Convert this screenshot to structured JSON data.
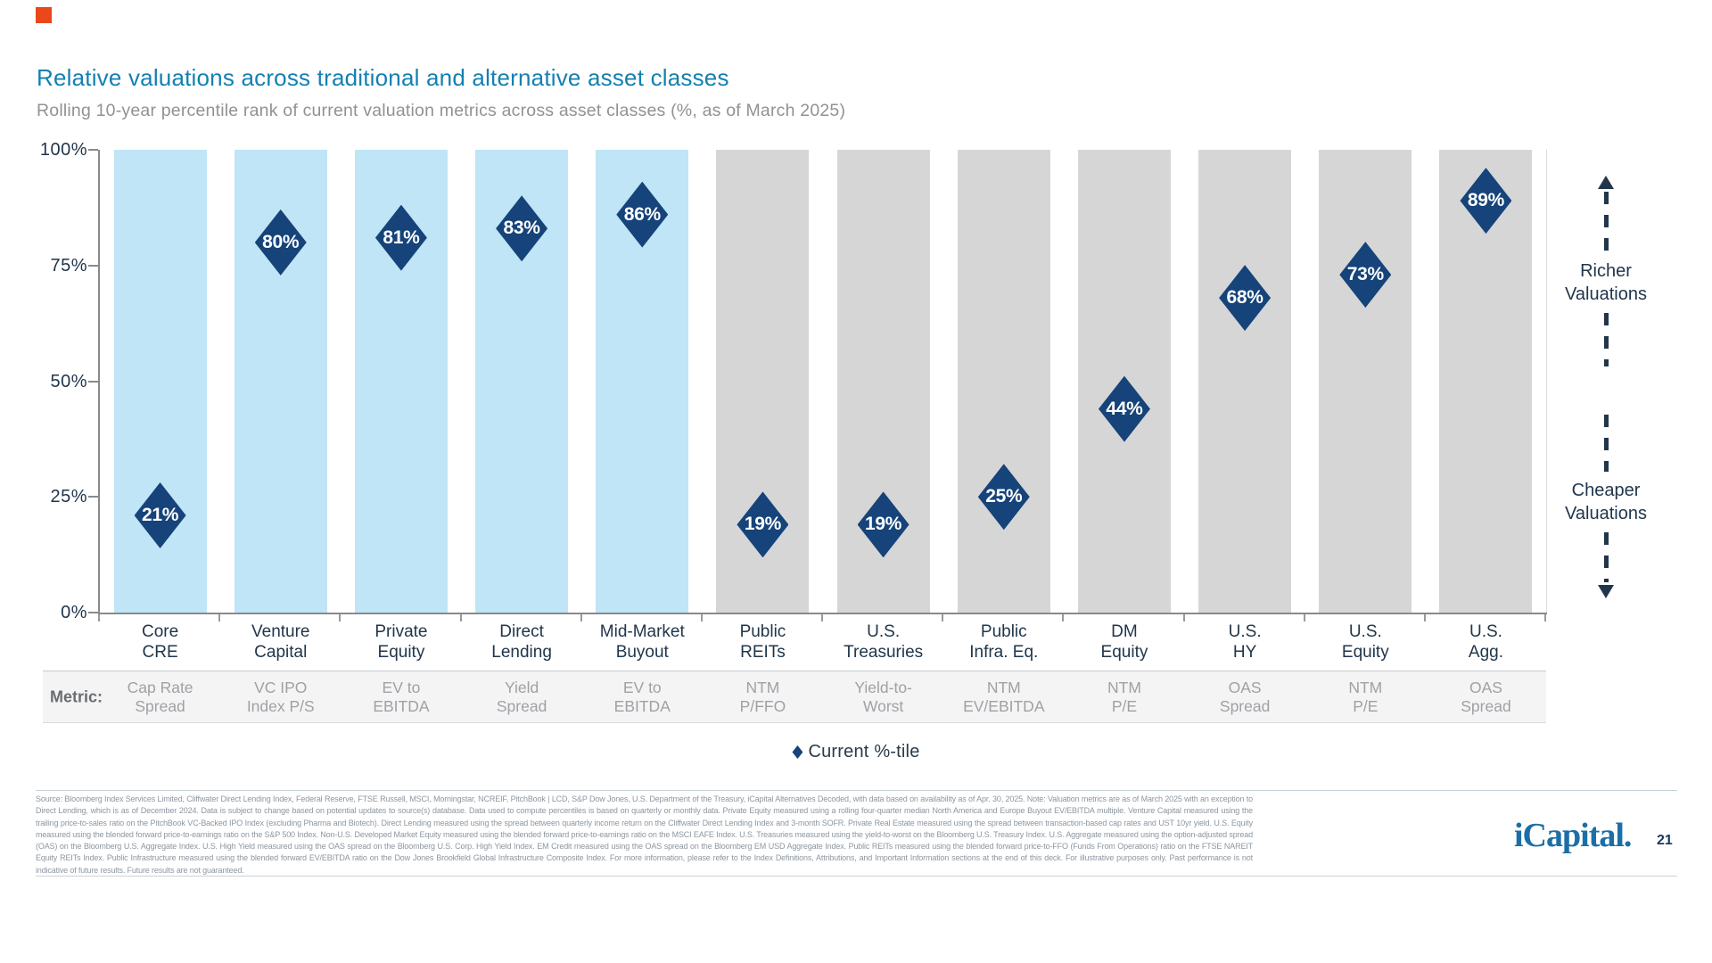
{
  "accent_color": "#E8481B",
  "chart_data": {
    "type": "scatter",
    "marker": "diamond",
    "title": "Relative valuations across traditional and alternative asset classes",
    "subtitle": "Rolling 10-year percentile rank of current valuation metrics across asset classes (%, as of March 2025)",
    "ylabel": "",
    "ylim": [
      0,
      100
    ],
    "y_tick_labels": [
      "100%",
      "75%",
      "50%",
      "25%",
      "0%"
    ],
    "grid": false,
    "legend": {
      "label": "Current %-tile",
      "position": "bottom-center"
    },
    "metric_row_label": "Metric:",
    "columns": [
      {
        "category": [
          "Core",
          "CRE"
        ],
        "metric": [
          "Cap Rate",
          "Spread"
        ],
        "value": 21,
        "group": "alternative"
      },
      {
        "category": [
          "Venture",
          "Capital"
        ],
        "metric": [
          "VC IPO",
          "Index P/S"
        ],
        "value": 80,
        "group": "alternative"
      },
      {
        "category": [
          "Private",
          "Equity"
        ],
        "metric": [
          "EV to",
          "EBITDA"
        ],
        "value": 81,
        "group": "alternative"
      },
      {
        "category": [
          "Direct",
          "Lending"
        ],
        "metric": [
          "Yield",
          "Spread"
        ],
        "value": 83,
        "group": "alternative"
      },
      {
        "category": [
          "Mid-Market",
          "Buyout"
        ],
        "metric": [
          "EV to",
          "EBITDA"
        ],
        "value": 86,
        "group": "alternative"
      },
      {
        "category": [
          "Public",
          "REITs"
        ],
        "metric": [
          "NTM",
          "P/FFO"
        ],
        "value": 19,
        "group": "traditional"
      },
      {
        "category": [
          "U.S.",
          "Treasuries"
        ],
        "metric": [
          "Yield-to-",
          "Worst"
        ],
        "value": 19,
        "group": "traditional"
      },
      {
        "category": [
          "Public",
          "Infra. Eq."
        ],
        "metric": [
          "NTM",
          "EV/EBITDA"
        ],
        "value": 25,
        "group": "traditional"
      },
      {
        "category": [
          "DM",
          "Equity"
        ],
        "metric": [
          "NTM",
          "P/E"
        ],
        "value": 44,
        "group": "traditional"
      },
      {
        "category": [
          "U.S.",
          "HY"
        ],
        "metric": [
          "OAS",
          "Spread"
        ],
        "value": 68,
        "group": "traditional"
      },
      {
        "category": [
          "U.S.",
          "Equity"
        ],
        "metric": [
          "NTM",
          "P/E"
        ],
        "value": 73,
        "group": "traditional"
      },
      {
        "category": [
          "U.S.",
          "Agg."
        ],
        "metric": [
          "OAS",
          "Spread"
        ],
        "value": 89,
        "group": "traditional"
      }
    ],
    "colors": {
      "alternative_bar": "#BFE5F6",
      "traditional_bar": "#D6D6D6",
      "diamond": "#15437A",
      "title": "#1480B1"
    },
    "annotations": {
      "richer": "Richer Valuations",
      "cheaper": "Cheaper Valuations"
    }
  },
  "footer": {
    "source": "Source: Bloomberg Index Services Limited, Cliffwater Direct Lending Index, Federal Reserve, FTSE Russell, MSCI, Morningstar, NCREIF, PitchBook | LCD, S&P Dow Jones, U.S. Department of the Treasury, iCapital Alternatives Decoded, with data based on availability as of Apr. 30, 2025. Note: Valuation metrics are as of March 2025 with an exception to Direct Lending, which is as of December 2024. Data is subject to change based on potential updates to source(s) database. Data used to compute percentiles is based on quarterly or monthly data. Private Equity measured using a rolling four-quarter median North America and Europe Buyout EV/EBITDA multiple. Venture Capital measured using the trailing price-to-sales ratio on the PitchBook VC-Backed IPO Index (excluding Pharma and Biotech). Direct Lending measured using the spread between quarterly income return on the Cliffwater Direct Lending Index and 3-month SOFR. Private Real Estate measured using the spread between transaction-based cap rates and UST 10yr yield. U.S. Equity measured using the blended forward price-to-earnings ratio on the S&P 500 Index. Non-U.S. Developed Market Equity measured using the blended forward price-to-earnings ratio on the MSCI EAFE Index. U.S. Treasuries measured using the yield-to-worst on the Bloomberg U.S. Treasury Index. U.S. Aggregate measured using the option-adjusted spread (OAS) on the Bloomberg U.S. Aggregate Index. U.S. High Yield measured using the OAS spread on the Bloomberg U.S. Corp. High Yield Index. EM Credit measured using the OAS spread on the Bloomberg EM USD Aggregate Index. Public REITs measured using the blended forward price-to-FFO (Funds From Operations) ratio on the FTSE NAREIT Equity REITs Index. Public Infrastructure measured using the blended forward EV/EBITDA ratio on the Dow Jones Brookfield Global Infrastructure Composite Index. For more information, please refer to the Index Definitions, Attributions, and Important Information sections at the end of this deck. For illustrative purposes only. Past performance is not indicative of future results. Future results are not guaranteed.",
    "logo": "iCapital.",
    "page_number": "21"
  }
}
